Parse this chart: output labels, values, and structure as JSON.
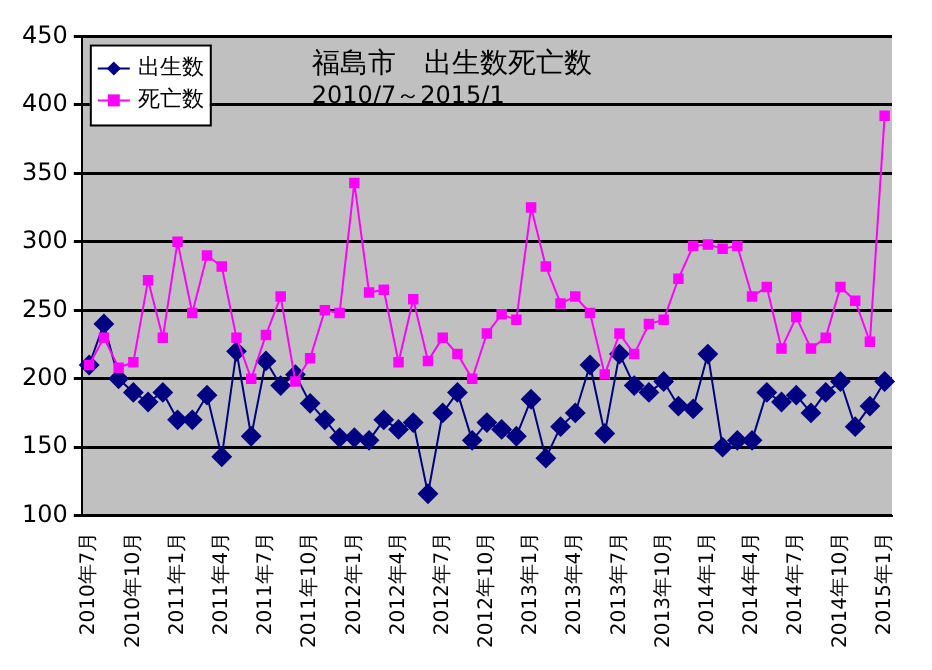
{
  "chart_data": {
    "type": "line",
    "title": "福島市　出生数死亡数",
    "subtitle": "2010/7～2015/1",
    "categories": [
      "2010年7月",
      null,
      null,
      "2010年10月",
      null,
      null,
      "2011年1月",
      null,
      null,
      "2011年4月",
      null,
      null,
      "2011年7月",
      null,
      null,
      "2011年10月",
      null,
      null,
      "2012年1月",
      null,
      null,
      "2012年4月",
      null,
      null,
      "2012年7月",
      null,
      null,
      "2012年10月",
      null,
      null,
      "2013年1月",
      null,
      null,
      "2013年4月",
      null,
      null,
      "2013年7月",
      null,
      null,
      "2013年10月",
      null,
      null,
      "2014年1月",
      null,
      null,
      "2014年4月",
      null,
      null,
      "2014年7月",
      null,
      null,
      "2014年10月",
      null,
      null,
      "2015年1月"
    ],
    "series": [
      {
        "name": "出生数",
        "color": "#000080",
        "marker": "diamond",
        "values": [
          210,
          240,
          200,
          190,
          183,
          190,
          170,
          170,
          188,
          143,
          220,
          158,
          213,
          195,
          203,
          182,
          170,
          157,
          157,
          155,
          170,
          163,
          168,
          116,
          175,
          190,
          155,
          168,
          163,
          158,
          185,
          142,
          165,
          175,
          210,
          160,
          218,
          195,
          190,
          198,
          180,
          178,
          218,
          150,
          155,
          155,
          190,
          183,
          188,
          175,
          190,
          198,
          165,
          180,
          198
        ]
      },
      {
        "name": "死亡数",
        "color": "#ff00ff",
        "marker": "square",
        "values": [
          210,
          230,
          208,
          212,
          272,
          230,
          300,
          248,
          290,
          282,
          230,
          200,
          232,
          260,
          198,
          215,
          250,
          248,
          343,
          263,
          265,
          212,
          258,
          213,
          230,
          218,
          200,
          233,
          247,
          243,
          325,
          282,
          255,
          260,
          248,
          203,
          233,
          218,
          240,
          243,
          273,
          297,
          298,
          295,
          297,
          260,
          267,
          222,
          245,
          222,
          230,
          267,
          257,
          227,
          392
        ]
      }
    ],
    "ylim": [
      100,
      450
    ],
    "yticks": [
      100,
      150,
      200,
      250,
      300,
      350,
      400,
      450
    ],
    "grid": "y",
    "legend": "top left"
  }
}
